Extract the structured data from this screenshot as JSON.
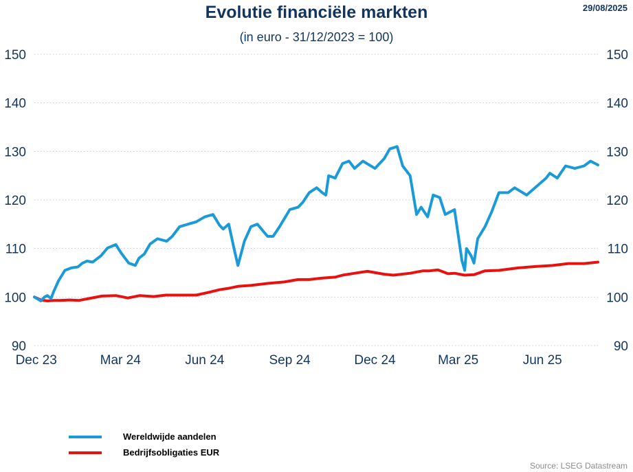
{
  "header": {
    "title": "Evolutie financiële markten",
    "subtitle": "(in euro - 31/12/2023 = 100)",
    "date": "29/08/2025"
  },
  "source": "Source: LSEG Datastream",
  "colors": {
    "series1": "#1a9ad6",
    "series2": "#e8110f",
    "text": "#12355f",
    "grid": "#c8c8c8"
  },
  "chart_data": {
    "type": "line",
    "title": "Evolutie financiële markten",
    "subtitle": "(in euro - 31/12/2023 = 100)",
    "ylim": [
      90,
      150
    ],
    "yticks": [
      90,
      100,
      110,
      120,
      130,
      140,
      150
    ],
    "ytick_labels": [
      "90",
      "100",
      "110",
      "120",
      "130",
      "140",
      "150"
    ],
    "x_range": [
      "2023-12-29",
      "2025-08-29"
    ],
    "xticks": [
      "2023-12-31",
      "2024-03-31",
      "2024-06-30",
      "2024-09-30",
      "2024-12-31",
      "2025-03-31",
      "2025-06-30"
    ],
    "xtick_labels": [
      "Dec 23",
      "Mar 24",
      "Jun 24",
      "Sep 24",
      "Dec 24",
      "Mar 25",
      "Jun 25"
    ],
    "grid": "horizontal dotted",
    "axes": "left and right y-axis",
    "legend_position": "bottom-left",
    "series": [
      {
        "name": "Wereldwijde aandelen",
        "color": "#1a9ad6",
        "x": [
          "2023-12-29",
          "2024-01-05",
          "2024-01-09",
          "2024-01-12",
          "2024-01-16",
          "2024-01-19",
          "2024-01-24",
          "2024-01-31",
          "2024-02-07",
          "2024-02-14",
          "2024-02-19",
          "2024-02-24",
          "2024-03-01",
          "2024-03-10",
          "2024-03-17",
          "2024-03-26",
          "2024-04-01",
          "2024-04-09",
          "2024-04-16",
          "2024-04-20",
          "2024-04-26",
          "2024-05-02",
          "2024-05-10",
          "2024-05-20",
          "2024-05-26",
          "2024-06-03",
          "2024-06-12",
          "2024-06-21",
          "2024-06-30",
          "2024-07-09",
          "2024-07-16",
          "2024-07-20",
          "2024-07-26",
          "2024-08-01",
          "2024-08-05",
          "2024-08-12",
          "2024-08-19",
          "2024-08-26",
          "2024-09-06",
          "2024-09-12",
          "2024-09-19",
          "2024-09-30",
          "2024-10-09",
          "2024-10-14",
          "2024-10-21",
          "2024-10-29",
          "2024-11-04",
          "2024-11-08",
          "2024-11-11",
          "2024-11-18",
          "2024-11-26",
          "2024-12-03",
          "2024-12-09",
          "2024-12-18",
          "2024-12-31",
          "2025-01-10",
          "2025-01-16",
          "2025-01-24",
          "2025-01-30",
          "2025-02-07",
          "2025-02-14",
          "2025-02-19",
          "2025-02-26",
          "2025-03-04",
          "2025-03-11",
          "2025-03-17",
          "2025-03-27",
          "2025-04-04",
          "2025-04-07",
          "2025-04-09",
          "2025-04-14",
          "2025-04-17",
          "2025-04-21",
          "2025-04-29",
          "2025-05-06",
          "2025-05-14",
          "2025-05-24",
          "2025-05-31",
          "2025-06-13",
          "2025-06-25",
          "2025-07-04",
          "2025-07-08",
          "2025-07-16",
          "2025-07-25",
          "2025-08-04",
          "2025-08-14",
          "2025-08-21",
          "2025-08-29"
        ],
        "values": [
          100,
          99.2,
          100,
          100.3,
          99.7,
          101.2,
          103.3,
          105.5,
          106,
          106.2,
          107,
          107.4,
          107.2,
          108.5,
          110.1,
          110.8,
          109,
          107,
          106.5,
          108,
          108.9,
          110.9,
          112,
          111.5,
          112.5,
          114.5,
          115,
          115.5,
          116.5,
          117,
          114.8,
          114,
          115,
          109.8,
          106.5,
          111.5,
          114.5,
          115,
          112.5,
          112.5,
          114.5,
          118,
          118.5,
          119.5,
          121.5,
          122.5,
          121.5,
          121,
          125,
          124.5,
          127.5,
          128,
          126.5,
          128,
          126.5,
          128.5,
          130.5,
          131,
          127,
          125,
          117,
          118.5,
          116.5,
          121,
          120.5,
          117,
          118,
          107.5,
          105.5,
          110,
          108.5,
          107,
          112,
          114.5,
          117.5,
          121.5,
          121.5,
          122.5,
          121,
          123,
          124.5,
          125.5,
          124.5,
          127,
          126.5,
          127,
          128,
          127.2
        ]
      },
      {
        "name": "Bedrijfsobligaties EUR",
        "color": "#e8110f",
        "x": [
          "2023-12-29",
          "2024-01-05",
          "2024-01-12",
          "2024-01-19",
          "2024-01-26",
          "2024-02-05",
          "2024-02-15",
          "2024-02-26",
          "2024-03-11",
          "2024-03-26",
          "2024-04-08",
          "2024-04-21",
          "2024-05-06",
          "2024-05-19",
          "2024-06-04",
          "2024-06-21",
          "2024-07-05",
          "2024-07-16",
          "2024-07-26",
          "2024-08-05",
          "2024-08-19",
          "2024-09-06",
          "2024-09-24",
          "2024-10-09",
          "2024-10-21",
          "2024-11-04",
          "2024-11-18",
          "2024-11-26",
          "2024-12-09",
          "2024-12-23",
          "2025-01-10",
          "2025-01-20",
          "2025-02-07",
          "2025-02-21",
          "2025-02-28",
          "2025-03-09",
          "2025-03-20",
          "2025-03-27",
          "2025-04-07",
          "2025-04-17",
          "2025-04-29",
          "2025-05-14",
          "2025-06-04",
          "2025-06-24",
          "2025-07-11",
          "2025-07-28",
          "2025-08-14",
          "2025-08-29"
        ],
        "values": [
          100,
          99.4,
          99.2,
          99.3,
          99.3,
          99.4,
          99.3,
          99.7,
          100.2,
          100.3,
          99.8,
          100.3,
          100.1,
          100.4,
          100.4,
          100.4,
          101,
          101.5,
          101.8,
          102.2,
          102.4,
          102.8,
          103.1,
          103.6,
          103.6,
          103.9,
          104.1,
          104.5,
          104.9,
          105.3,
          104.7,
          104.5,
          104.9,
          105.4,
          105.4,
          105.6,
          104.8,
          104.9,
          104.5,
          104.6,
          105.4,
          105.5,
          106,
          106.3,
          106.5,
          106.9,
          106.9,
          107.2
        ]
      }
    ]
  }
}
